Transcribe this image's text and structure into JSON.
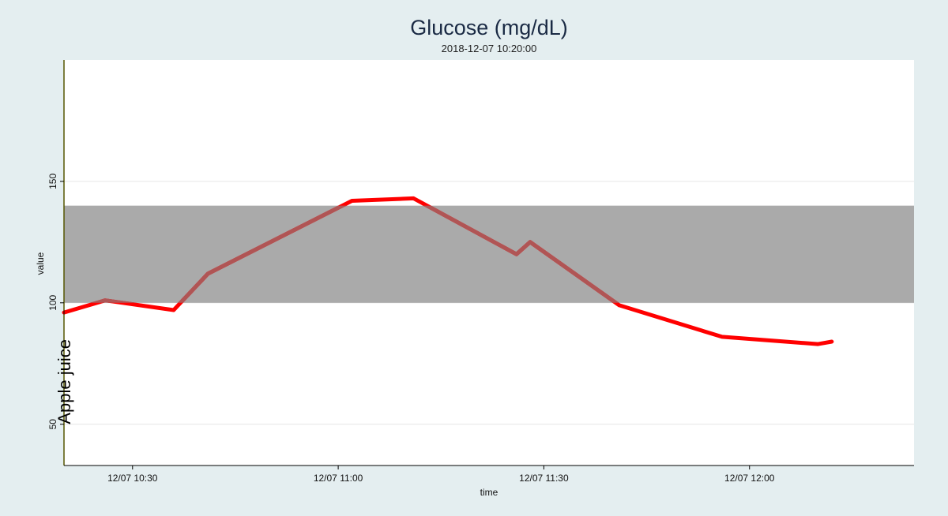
{
  "chart_data": {
    "type": "line",
    "title": "Glucose (mg/dL)",
    "subtitle": "2018-12-07 10:20:00",
    "xlabel": "time",
    "ylabel": "value",
    "xlim": [
      "2018-12-07 10:20",
      "2018-12-07 12:24"
    ],
    "ylim": [
      33,
      200
    ],
    "yticks": [
      50,
      100,
      150
    ],
    "xticks": [
      {
        "t": "2018-12-07 10:30",
        "label": "12/07 10:30"
      },
      {
        "t": "2018-12-07 11:00",
        "label": "12/07 11:00"
      },
      {
        "t": "2018-12-07 11:30",
        "label": "12/07 11:30"
      },
      {
        "t": "2018-12-07 12:00",
        "label": "12/07 12:00"
      }
    ],
    "target_band": {
      "low": 100,
      "high": 140,
      "color": "#aaaaaa"
    },
    "grid": true,
    "annotations": [
      {
        "t": "2018-12-07 10:20",
        "label": "Apple juice",
        "color": "#ffff00"
      }
    ],
    "series": [
      {
        "color": "#ff0000",
        "in_range_color": "#b05555",
        "points": [
          {
            "t": "2018-12-07 10:20",
            "v": 96
          },
          {
            "t": "2018-12-07 10:26",
            "v": 101
          },
          {
            "t": "2018-12-07 10:36",
            "v": 97
          },
          {
            "t": "2018-12-07 10:41",
            "v": 112
          },
          {
            "t": "2018-12-07 11:02",
            "v": 142
          },
          {
            "t": "2018-12-07 11:11",
            "v": 143
          },
          {
            "t": "2018-12-07 11:26",
            "v": 120
          },
          {
            "t": "2018-12-07 11:28",
            "v": 125
          },
          {
            "t": "2018-12-07 11:41",
            "v": 99
          },
          {
            "t": "2018-12-07 11:56",
            "v": 86
          },
          {
            "t": "2018-12-07 12:10",
            "v": 83
          },
          {
            "t": "2018-12-07 12:12",
            "v": 84
          }
        ]
      }
    ]
  }
}
